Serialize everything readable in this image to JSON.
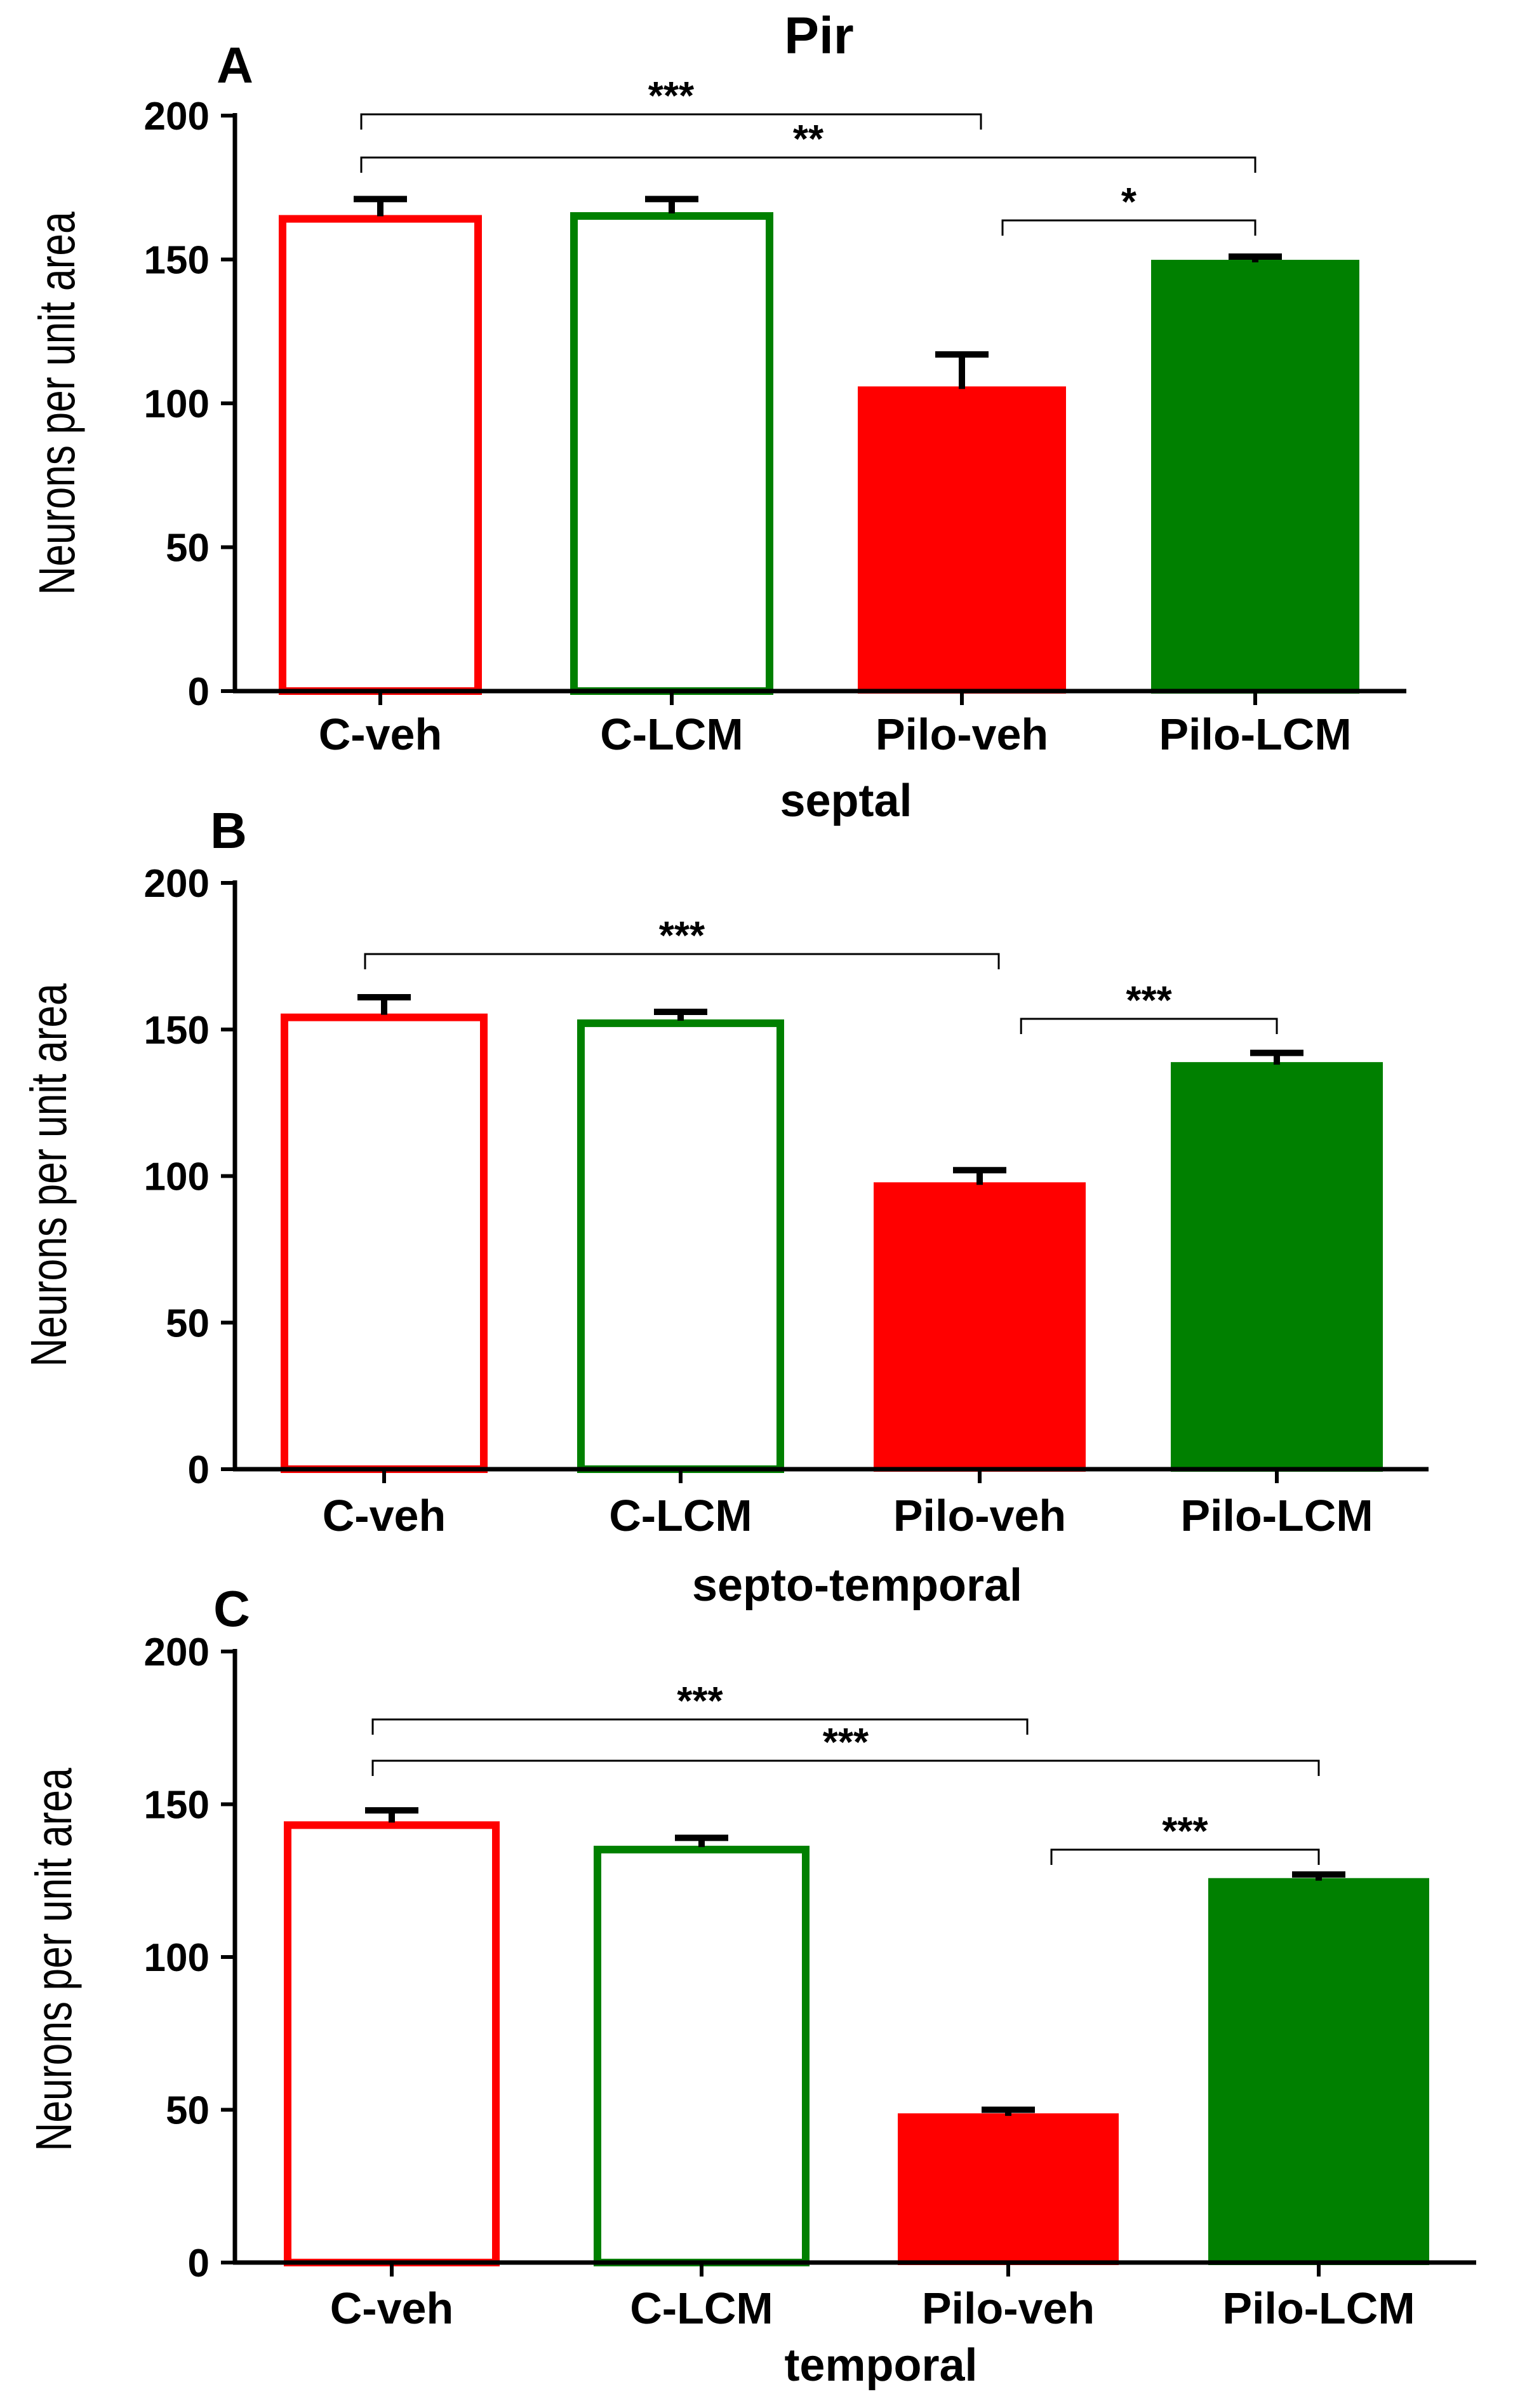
{
  "figure_title": "Pir",
  "colors": {
    "red": "#ff0000",
    "green": "#008000",
    "black": "#000000"
  },
  "chart_data": [
    {
      "panel": "A",
      "type": "bar",
      "xlabel": "septal",
      "ylabel": "Neurons per unit area",
      "ylim": [
        0,
        200
      ],
      "yticks": [
        0,
        50,
        100,
        150,
        200
      ],
      "categories": [
        "C-veh",
        "C-LCM",
        "Pilo-veh",
        "Pilo-LCM"
      ],
      "values": [
        165,
        166,
        105,
        149
      ],
      "errors": [
        6,
        5,
        12,
        2
      ],
      "colors": [
        "#ff0000",
        "#008000",
        "#ff0000",
        "#008000"
      ],
      "filled": [
        false,
        false,
        true,
        true
      ],
      "significance": [
        {
          "from": 0,
          "to": 2,
          "label": "***"
        },
        {
          "from": 0,
          "to": 3,
          "label": "**"
        },
        {
          "from": 2,
          "to": 3,
          "label": "*"
        }
      ]
    },
    {
      "panel": "B",
      "type": "bar",
      "xlabel": "septo-temporal",
      "ylabel": "Neurons per unit area",
      "ylim": [
        0,
        200
      ],
      "yticks": [
        0,
        50,
        100,
        150,
        200
      ],
      "categories": [
        "C-veh",
        "C-LCM",
        "Pilo-veh",
        "Pilo-LCM"
      ],
      "values": [
        155,
        153,
        97,
        138
      ],
      "errors": [
        6,
        3,
        5,
        4
      ],
      "colors": [
        "#ff0000",
        "#008000",
        "#ff0000",
        "#008000"
      ],
      "filled": [
        false,
        false,
        true,
        true
      ],
      "significance": [
        {
          "from": 0,
          "to": 2,
          "label": "***"
        },
        {
          "from": 2,
          "to": 3,
          "label": "***"
        }
      ]
    },
    {
      "panel": "C",
      "type": "bar",
      "xlabel": "temporal",
      "ylabel": "Neurons per unit area",
      "ylim": [
        0,
        200
      ],
      "yticks": [
        0,
        50,
        100,
        150,
        200
      ],
      "categories": [
        "C-veh",
        "C-LCM",
        "Pilo-veh",
        "Pilo-LCM"
      ],
      "values": [
        144,
        136,
        48,
        125
      ],
      "errors": [
        4,
        3,
        2,
        2
      ],
      "colors": [
        "#ff0000",
        "#008000",
        "#ff0000",
        "#008000"
      ],
      "filled": [
        false,
        false,
        true,
        true
      ],
      "significance": [
        {
          "from": 0,
          "to": 2,
          "label": "***"
        },
        {
          "from": 0,
          "to": 3,
          "label": "***"
        },
        {
          "from": 2,
          "to": 3,
          "label": "***"
        }
      ]
    }
  ]
}
